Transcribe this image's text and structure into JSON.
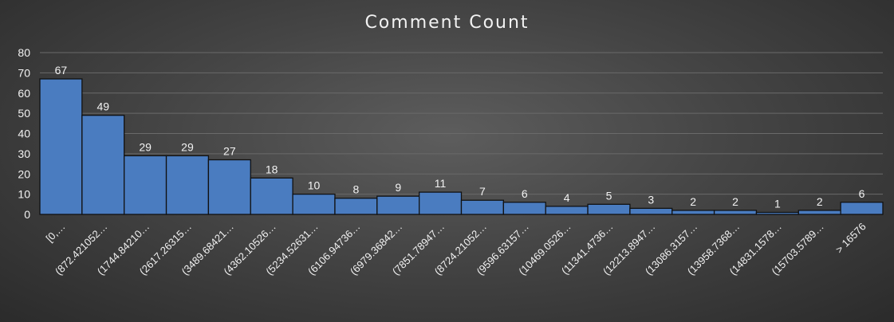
{
  "chart_data": {
    "type": "bar",
    "title": "Comment Count",
    "xlabel": "",
    "ylabel": "",
    "ylim": [
      0,
      80
    ],
    "yticks": [
      0,
      10,
      20,
      30,
      40,
      50,
      60,
      70,
      80
    ],
    "grid": true,
    "legend": "none",
    "bar_color": "#4a7cc0",
    "background": "#404040",
    "categories": [
      "[0,…",
      "(872.421052…",
      "(1744.84210…",
      "(2617.26315…",
      "(3489.68421…",
      "(4362.10526…",
      "(5234.52631…",
      "(6106.94736…",
      "(6979.36842…",
      "(7851.78947…",
      "(8724.21052…",
      "(9596.63157…",
      "(10469.0526…",
      "(11341.4736…",
      "(12213.8947…",
      "(13086.3157…",
      "(13958.7368…",
      "(14831.1578…",
      "(15703.5789…",
      "> 16576"
    ],
    "values": [
      67,
      49,
      29,
      29,
      27,
      18,
      10,
      8,
      9,
      11,
      7,
      6,
      4,
      5,
      3,
      2,
      2,
      1,
      2,
      6
    ]
  }
}
